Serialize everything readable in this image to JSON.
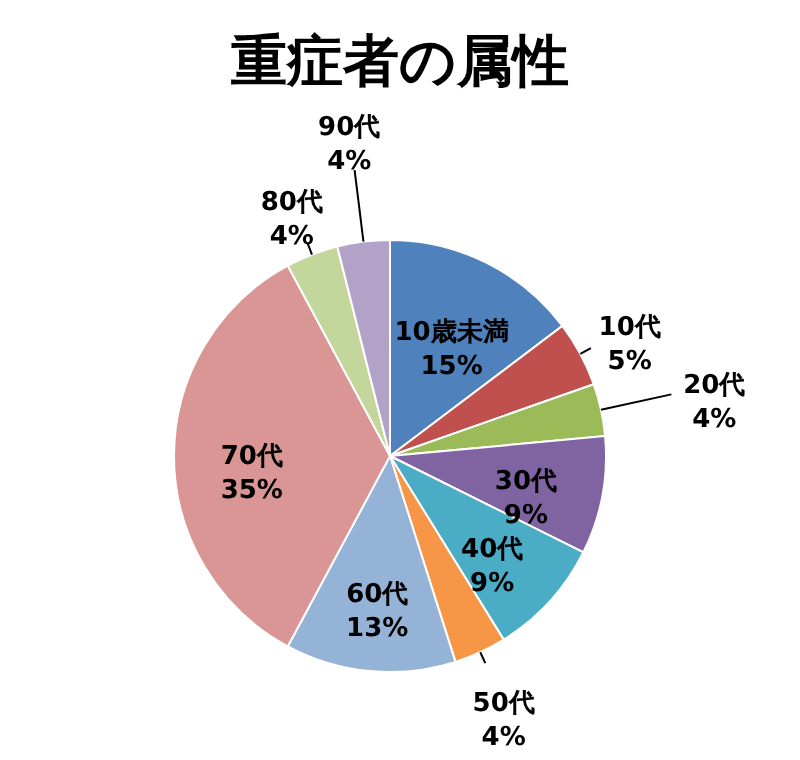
{
  "chart_data": {
    "type": "pie",
    "title": "重症者の属性",
    "categories": [
      "10歳未満",
      "10代",
      "20代",
      "30代",
      "40代",
      "50代",
      "60代",
      "70代",
      "80代",
      "90代"
    ],
    "values": [
      15,
      5,
      4,
      9,
      9,
      4,
      13,
      35,
      4,
      4
    ],
    "value_labels": [
      "15%",
      "5%",
      "4%",
      "9%",
      "9%",
      "4%",
      "13%",
      "35%",
      "4%",
      "4%"
    ],
    "colors": [
      "#4f81bd",
      "#c0504d",
      "#9bbb59",
      "#8064a2",
      "#4bacc6",
      "#f79646",
      "#95b3d7",
      "#d99694",
      "#c3d69b",
      "#b3a2c7"
    ],
    "legend": false
  }
}
